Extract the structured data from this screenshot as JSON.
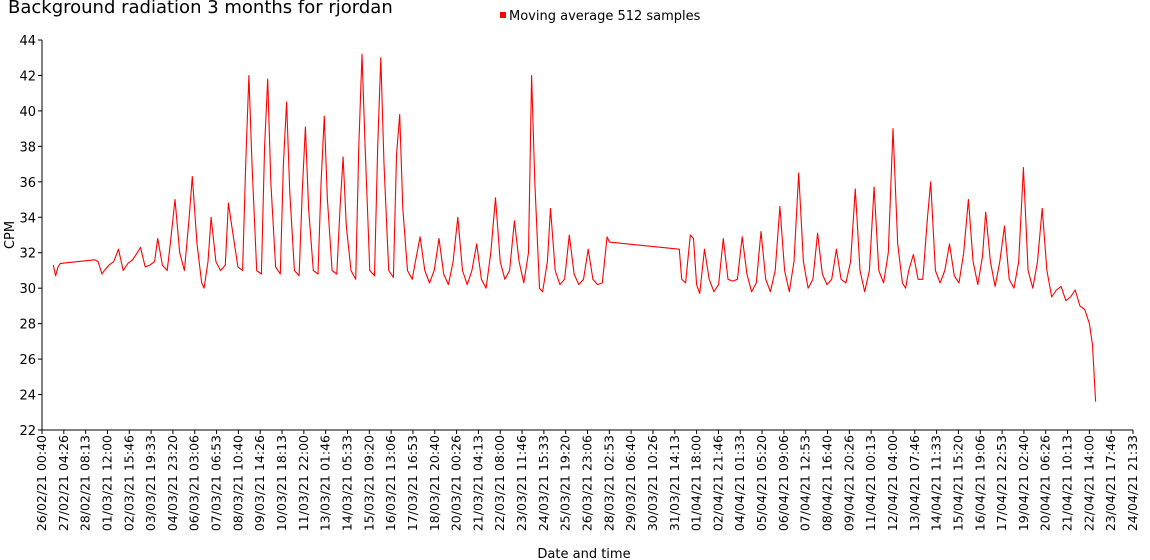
{
  "chart_data": {
    "type": "line",
    "title": "Background radiation 3 months for rjordan",
    "ylabel": "CPM",
    "xlabel": "Date and time",
    "ylim": [
      22,
      44
    ],
    "yticks": [
      22,
      24,
      26,
      28,
      30,
      32,
      34,
      36,
      38,
      40,
      42,
      44
    ],
    "xticks": [
      "26/02/21 00:40",
      "27/02/21 04:26",
      "28/02/21 08:13",
      "01/03/21 12:00",
      "02/03/21 15:46",
      "03/03/21 19:33",
      "04/03/21 23:20",
      "06/03/21 03:06",
      "07/03/21 06:53",
      "08/03/21 10:40",
      "09/03/21 14:26",
      "10/03/21 18:13",
      "11/03/21 22:00",
      "13/03/21 01:46",
      "14/03/21 05:33",
      "15/03/21 09:20",
      "16/03/21 13:06",
      "17/03/21 16:53",
      "18/03/21 20:40",
      "20/03/21 00:26",
      "21/03/21 04:13",
      "22/03/21 08:00",
      "23/03/21 11:46",
      "24/03/21 15:33",
      "25/03/21 19:20",
      "26/03/21 23:06",
      "28/03/21 02:53",
      "29/03/21 06:40",
      "30/03/21 10:26",
      "31/03/21 14:13",
      "01/04/21 18:00",
      "02/04/21 21:46",
      "04/04/21 01:33",
      "05/04/21 05:20",
      "06/04/21 09:06",
      "07/04/21 12:53",
      "08/04/21 16:40",
      "09/04/21 20:26",
      "11/04/21 00:13",
      "12/04/21 04:00",
      "13/04/21 07:46",
      "14/04/21 11:33",
      "15/04/21 15:20",
      "16/04/21 19:06",
      "17/04/21 22:53",
      "19/04/21 02:40",
      "20/04/21 06:26",
      "21/04/21 10:13",
      "22/04/21 14:00",
      "23/04/21 17:46",
      "24/04/21 21:33"
    ],
    "grid": false,
    "legend_position": "top",
    "series": [
      {
        "name": "Moving average 512 samples",
        "color": "#ff0000",
        "points": [
          [
            "26/02/21 15:00",
            31.3
          ],
          [
            "26/02/21 18:00",
            30.7
          ],
          [
            "26/02/21 21:00",
            31.2
          ],
          [
            "27/02/21 00:00",
            31.4
          ],
          [
            "28/02/21 20:00",
            31.6
          ],
          [
            "01/03/21 00:00",
            31.5
          ],
          [
            "01/03/21 05:00",
            30.8
          ],
          [
            "01/03/21 08:00",
            31.0
          ],
          [
            "01/03/21 14:00",
            31.3
          ],
          [
            "01/03/21 20:00",
            31.5
          ],
          [
            "02/03/21 02:00",
            32.2
          ],
          [
            "02/03/21 08:00",
            31.0
          ],
          [
            "02/03/21 14:00",
            31.4
          ],
          [
            "02/03/21 20:00",
            31.6
          ],
          [
            "03/03/21 02:00",
            32.0
          ],
          [
            "03/03/21 06:00",
            32.3
          ],
          [
            "03/03/21 12:00",
            31.2
          ],
          [
            "03/03/21 18:00",
            31.3
          ],
          [
            "04/03/21 00:00",
            31.5
          ],
          [
            "04/03/21 04:00",
            32.8
          ],
          [
            "04/03/21 10:00",
            31.3
          ],
          [
            "04/03/21 16:00",
            31.0
          ],
          [
            "04/03/21 20:00",
            32.5
          ],
          [
            "05/03/21 02:00",
            35.0
          ],
          [
            "05/03/21 08:00",
            32.0
          ],
          [
            "05/03/21 14:00",
            31.0
          ],
          [
            "05/03/21 20:00",
            34.0
          ],
          [
            "06/03/21 00:00",
            36.3
          ],
          [
            "06/03/21 06:00",
            32.5
          ],
          [
            "06/03/21 12:00",
            30.3
          ],
          [
            "06/03/21 15:00",
            30.0
          ],
          [
            "06/03/21 20:00",
            31.5
          ],
          [
            "07/03/21 00:00",
            34.0
          ],
          [
            "07/03/21 06:00",
            31.5
          ],
          [
            "07/03/21 12:00",
            31.0
          ],
          [
            "07/03/21 18:00",
            31.3
          ],
          [
            "07/03/21 22:00",
            34.8
          ],
          [
            "08/03/21 04:00",
            33.0
          ],
          [
            "08/03/21 10:00",
            31.2
          ],
          [
            "08/03/21 16:00",
            31.0
          ],
          [
            "08/03/21 20:00",
            37.0
          ],
          [
            "09/03/21 00:00",
            42.0
          ],
          [
            "09/03/21 04:00",
            37.0
          ],
          [
            "09/03/21 10:00",
            31.0
          ],
          [
            "09/03/21 16:00",
            30.8
          ],
          [
            "09/03/21 20:00",
            38.0
          ],
          [
            "10/03/21 00:00",
            41.8
          ],
          [
            "10/03/21 04:00",
            36.0
          ],
          [
            "10/03/21 10:00",
            31.2
          ],
          [
            "10/03/21 16:00",
            30.8
          ],
          [
            "10/03/21 20:00",
            37.0
          ],
          [
            "11/03/21 00:00",
            40.5
          ],
          [
            "11/03/21 04:00",
            35.5
          ],
          [
            "11/03/21 10:00",
            31.0
          ],
          [
            "11/03/21 16:00",
            30.7
          ],
          [
            "11/03/21 20:00",
            35.5
          ],
          [
            "12/03/21 00:00",
            39.1
          ],
          [
            "12/03/21 04:00",
            34.5
          ],
          [
            "12/03/21 10:00",
            31.0
          ],
          [
            "12/03/21 16:00",
            30.8
          ],
          [
            "12/03/21 20:00",
            36.0
          ],
          [
            "13/03/21 00:00",
            39.7
          ],
          [
            "13/03/21 04:00",
            35.0
          ],
          [
            "13/03/21 10:00",
            31.0
          ],
          [
            "13/03/21 16:00",
            30.8
          ],
          [
            "13/03/21 20:00",
            34.5
          ],
          [
            "14/03/21 00:00",
            37.4
          ],
          [
            "14/03/21 04:00",
            33.5
          ],
          [
            "14/03/21 10:00",
            31.0
          ],
          [
            "14/03/21 16:00",
            30.5
          ],
          [
            "14/03/21 20:00",
            38.0
          ],
          [
            "15/03/21 00:00",
            43.2
          ],
          [
            "15/03/21 04:00",
            38.0
          ],
          [
            "15/03/21 10:00",
            31.0
          ],
          [
            "15/03/21 16:00",
            30.7
          ],
          [
            "15/03/21 20:00",
            38.0
          ],
          [
            "16/03/21 00:00",
            43.0
          ],
          [
            "16/03/21 04:00",
            37.0
          ],
          [
            "16/03/21 10:00",
            31.0
          ],
          [
            "16/03/21 16:00",
            30.6
          ],
          [
            "16/03/21 20:00",
            37.5
          ],
          [
            "17/03/21 00:00",
            39.8
          ],
          [
            "17/03/21 04:00",
            34.5
          ],
          [
            "17/03/21 10:00",
            31.0
          ],
          [
            "17/03/21 16:00",
            30.5
          ],
          [
            "17/03/21 20:00",
            31.5
          ],
          [
            "18/03/21 02:00",
            32.9
          ],
          [
            "18/03/21 08:00",
            31.0
          ],
          [
            "18/03/21 14:00",
            30.3
          ],
          [
            "18/03/21 20:00",
            31.0
          ],
          [
            "19/03/21 02:00",
            32.8
          ],
          [
            "19/03/21 08:00",
            30.8
          ],
          [
            "19/03/21 14:00",
            30.2
          ],
          [
            "19/03/21 20:00",
            31.5
          ],
          [
            "20/03/21 02:00",
            34.0
          ],
          [
            "20/03/21 08:00",
            31.0
          ],
          [
            "20/03/21 14:00",
            30.2
          ],
          [
            "20/03/21 20:00",
            31.0
          ],
          [
            "21/03/21 02:00",
            32.5
          ],
          [
            "21/03/21 08:00",
            30.5
          ],
          [
            "21/03/21 14:00",
            30.0
          ],
          [
            "21/03/21 20:00",
            32.0
          ],
          [
            "22/03/21 02:00",
            35.1
          ],
          [
            "22/03/21 08:00",
            31.5
          ],
          [
            "22/03/21 14:00",
            30.5
          ],
          [
            "22/03/21 20:00",
            31.0
          ],
          [
            "23/03/21 02:00",
            33.8
          ],
          [
            "23/03/21 08:00",
            31.5
          ],
          [
            "23/03/21 14:00",
            30.3
          ],
          [
            "23/03/21 20:00",
            32.0
          ],
          [
            "24/03/21 00:00",
            42.0
          ],
          [
            "24/03/21 04:00",
            36.0
          ],
          [
            "24/03/21 10:00",
            30.0
          ],
          [
            "24/03/21 14:00",
            29.8
          ],
          [
            "24/03/21 20:00",
            31.5
          ],
          [
            "25/03/21 00:00",
            34.5
          ],
          [
            "25/03/21 06:00",
            31.0
          ],
          [
            "25/03/21 12:00",
            30.2
          ],
          [
            "25/03/21 18:00",
            30.5
          ],
          [
            "26/03/21 00:00",
            33.0
          ],
          [
            "26/03/21 06:00",
            30.8
          ],
          [
            "26/03/21 12:00",
            30.2
          ],
          [
            "26/03/21 18:00",
            30.5
          ],
          [
            "27/03/21 00:00",
            32.2
          ],
          [
            "27/03/21 06:00",
            30.5
          ],
          [
            "27/03/21 12:00",
            30.2
          ],
          [
            "27/03/21 18:00",
            30.3
          ],
          [
            "28/03/21 00:00",
            32.9
          ],
          [
            "28/03/21 03:00",
            32.6
          ],
          [
            "31/03/21 20:00",
            32.2
          ],
          [
            "31/03/21 23:00",
            30.5
          ],
          [
            "01/04/21 04:00",
            30.3
          ],
          [
            "01/04/21 10:00",
            33.0
          ],
          [
            "01/04/21 14:00",
            32.8
          ],
          [
            "01/04/21 18:00",
            30.2
          ],
          [
            "01/04/21 22:00",
            29.7
          ],
          [
            "02/04/21 04:00",
            32.2
          ],
          [
            "02/04/21 10:00",
            30.5
          ],
          [
            "02/04/21 16:00",
            29.8
          ],
          [
            "02/04/21 22:00",
            30.2
          ],
          [
            "03/04/21 04:00",
            32.8
          ],
          [
            "03/04/21 10:00",
            30.5
          ],
          [
            "03/04/21 16:00",
            30.4
          ],
          [
            "03/04/21 22:00",
            30.5
          ],
          [
            "04/04/21 04:00",
            32.9
          ],
          [
            "04/04/21 10:00",
            30.8
          ],
          [
            "04/04/21 16:00",
            29.8
          ],
          [
            "04/04/21 22:00",
            30.3
          ],
          [
            "05/04/21 04:00",
            33.2
          ],
          [
            "05/04/21 10:00",
            30.5
          ],
          [
            "05/04/21 16:00",
            29.8
          ],
          [
            "05/04/21 22:00",
            31.0
          ],
          [
            "06/04/21 04:00",
            34.6
          ],
          [
            "06/04/21 10:00",
            31.0
          ],
          [
            "06/04/21 16:00",
            29.8
          ],
          [
            "06/04/21 22:00",
            31.5
          ],
          [
            "07/04/21 04:00",
            36.5
          ],
          [
            "07/04/21 10:00",
            31.5
          ],
          [
            "07/04/21 16:00",
            30.0
          ],
          [
            "07/04/21 22:00",
            30.5
          ],
          [
            "08/04/21 04:00",
            33.1
          ],
          [
            "08/04/21 10:00",
            30.8
          ],
          [
            "08/04/21 16:00",
            30.2
          ],
          [
            "08/04/21 22:00",
            30.5
          ],
          [
            "09/04/21 04:00",
            32.2
          ],
          [
            "09/04/21 10:00",
            30.5
          ],
          [
            "09/04/21 16:00",
            30.3
          ],
          [
            "09/04/21 22:00",
            31.5
          ],
          [
            "10/04/21 04:00",
            35.6
          ],
          [
            "10/04/21 10:00",
            31.0
          ],
          [
            "10/04/21 16:00",
            29.8
          ],
          [
            "10/04/21 22:00",
            31.0
          ],
          [
            "11/04/21 04:00",
            35.7
          ],
          [
            "11/04/21 10:00",
            31.0
          ],
          [
            "11/04/21 16:00",
            30.3
          ],
          [
            "11/04/21 22:00",
            32.0
          ],
          [
            "12/04/21 04:00",
            39.0
          ],
          [
            "12/04/21 10:00",
            32.5
          ],
          [
            "12/04/21 16:00",
            30.3
          ],
          [
            "12/04/21 20:00",
            30.0
          ],
          [
            "13/04/21 00:00",
            31.0
          ],
          [
            "13/04/21 06:00",
            31.9
          ],
          [
            "13/04/21 12:00",
            30.5
          ],
          [
            "13/04/21 18:00",
            30.5
          ],
          [
            "14/04/21 00:00",
            34.0
          ],
          [
            "14/04/21 04:00",
            36.0
          ],
          [
            "14/04/21 10:00",
            31.0
          ],
          [
            "14/04/21 16:00",
            30.3
          ],
          [
            "14/04/21 22:00",
            31.0
          ],
          [
            "15/04/21 04:00",
            32.5
          ],
          [
            "15/04/21 10:00",
            30.7
          ],
          [
            "15/04/21 16:00",
            30.3
          ],
          [
            "15/04/21 22:00",
            32.0
          ],
          [
            "16/04/21 04:00",
            35.0
          ],
          [
            "16/04/21 10:00",
            31.5
          ],
          [
            "16/04/21 16:00",
            30.2
          ],
          [
            "16/04/21 22:00",
            31.8
          ],
          [
            "17/04/21 02:00",
            34.3
          ],
          [
            "17/04/21 08:00",
            31.5
          ],
          [
            "17/04/21 14:00",
            30.1
          ],
          [
            "17/04/21 20:00",
            31.5
          ],
          [
            "18/04/21 02:00",
            33.5
          ],
          [
            "18/04/21 08:00",
            30.5
          ],
          [
            "18/04/21 14:00",
            30.0
          ],
          [
            "18/04/21 20:00",
            31.5
          ],
          [
            "19/04/21 02:00",
            36.8
          ],
          [
            "19/04/21 08:00",
            31.0
          ],
          [
            "19/04/21 14:00",
            30.0
          ],
          [
            "19/04/21 20:00",
            31.5
          ],
          [
            "20/04/21 02:00",
            34.5
          ],
          [
            "20/04/21 08:00",
            31.0
          ],
          [
            "20/04/21 14:00",
            29.5
          ],
          [
            "20/04/21 20:00",
            29.9
          ],
          [
            "21/04/21 02:00",
            30.1
          ],
          [
            "21/04/21 08:00",
            29.3
          ],
          [
            "21/04/21 14:00",
            29.5
          ],
          [
            "21/04/21 20:00",
            29.9
          ],
          [
            "22/04/21 02:00",
            29.0
          ],
          [
            "22/04/21 08:00",
            28.8
          ],
          [
            "22/04/21 14:00",
            28.0
          ],
          [
            "22/04/21 18:00",
            26.8
          ],
          [
            "22/04/21 22:00",
            23.6
          ]
        ]
      }
    ]
  }
}
